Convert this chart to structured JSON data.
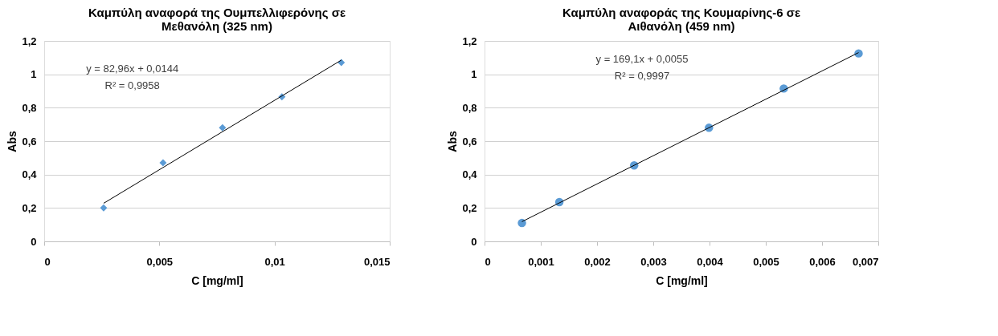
{
  "chart_data": [
    {
      "type": "scatter",
      "title": "Καμπύλη αναφορά της Ουμπελλιφερόνης σε\nΜεθανόλη   (325 nm)",
      "xlabel": "C [mg/ml]",
      "ylabel": "Abs",
      "xlim": [
        0,
        0.015
      ],
      "xticks": [
        0,
        {
          "value": 0.005,
          "label": "0,005"
        },
        {
          "value": 0.01,
          "label": "0,01"
        },
        {
          "value": 0.015,
          "label": "0,015"
        }
      ],
      "ylim": [
        0,
        1.2
      ],
      "yticks": [
        0,
        {
          "value": 0.2,
          "label": "0,2"
        },
        {
          "value": 0.4,
          "label": "0,4"
        },
        {
          "value": 0.6,
          "label": "0,6"
        },
        {
          "value": 0.8,
          "label": "0,8"
        },
        1,
        {
          "value": 1.2,
          "label": "1,2"
        }
      ],
      "grid": "y",
      "annotations": [
        "y = 82,96x + 0,0144",
        "R² = 0,9958"
      ],
      "series": [
        {
          "type": "scatter",
          "marker": "diamond",
          "color": "#5b9bd5",
          "x": [
            0.00258,
            0.00516,
            0.00774,
            0.01032,
            0.0129
          ],
          "values": [
            0.2,
            0.47,
            0.68,
            0.865,
            1.07
          ]
        },
        {
          "type": "line",
          "marker": "none",
          "color": "#000000",
          "x": [
            0.00258,
            0.0129
          ],
          "values": [
            0.228,
            1.085
          ]
        }
      ]
    },
    {
      "type": "scatter",
      "title": "Καμπύλη αναφοράς της Κουμαρίνης-6 σε\nΑιθανόλη (459 nm)",
      "xlabel": "C [mg/ml]",
      "ylabel": "Abs",
      "xlim": [
        0,
        0.007
      ],
      "xticks": [
        0,
        {
          "value": 0.001,
          "label": "0,001"
        },
        {
          "value": 0.002,
          "label": "0,002"
        },
        {
          "value": 0.003,
          "label": "0,003"
        },
        {
          "value": 0.004,
          "label": "0,004"
        },
        {
          "value": 0.005,
          "label": "0,005"
        },
        {
          "value": 0.006,
          "label": "0,006"
        },
        {
          "value": 0.007,
          "label": "0,007"
        }
      ],
      "ylim": [
        0,
        1.2
      ],
      "yticks": [
        0,
        {
          "value": 0.2,
          "label": "0,2"
        },
        {
          "value": 0.4,
          "label": "0,4"
        },
        {
          "value": 0.6,
          "label": "0,6"
        },
        {
          "value": 0.8,
          "label": "0,8"
        },
        1,
        {
          "value": 1.2,
          "label": "1,2"
        }
      ],
      "grid": "y",
      "annotations": [
        "y = 169,1x + 0,0055",
        "R² = 0,9997"
      ],
      "series": [
        {
          "type": "scatter",
          "marker": "circle",
          "color": "#5b9bd5",
          "x": [
            0.000665,
            0.00133,
            0.00266,
            0.00399,
            0.00532,
            0.00665
          ],
          "values": [
            0.11,
            0.235,
            0.455,
            0.68,
            0.915,
            1.125
          ]
        },
        {
          "type": "line",
          "marker": "none",
          "color": "#000000",
          "x": [
            0.000665,
            0.00665
          ],
          "values": [
            0.118,
            1.13
          ]
        }
      ]
    }
  ]
}
